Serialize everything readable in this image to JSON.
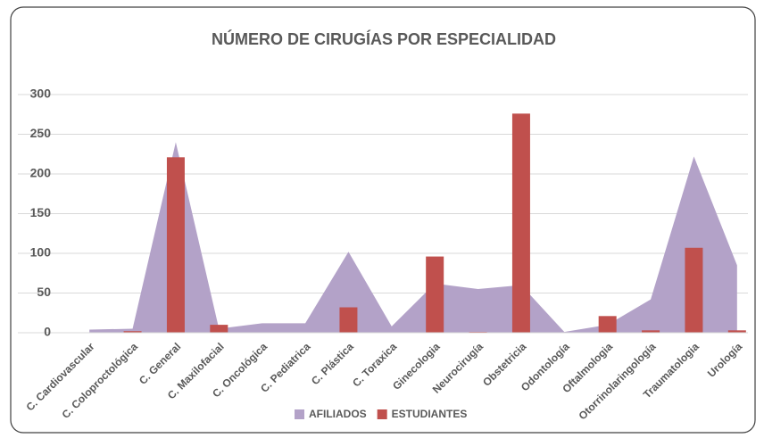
{
  "chart_data": {
    "type": "combo",
    "title": "NÚMERO DE CIRUGÍAS POR ESPECIALIDAD",
    "categories": [
      "C. Cardiovascular",
      "C. Coloproctológica",
      "C. General",
      "C. Maxilofacial",
      "C. Oncológica",
      "C. Pediatrica",
      "C. Plástica",
      "C. Toraxica",
      "Ginecologia",
      "Neurocirugía",
      "Obstetricia",
      "Odontología",
      "Oftalmologia",
      "Otorrinolaringología",
      "Traumatologia",
      "Urología"
    ],
    "series": [
      {
        "name": "AFILIADOS",
        "type": "area",
        "color": "#b3a2c8",
        "values": [
          4,
          5,
          240,
          5,
          12,
          12,
          102,
          8,
          62,
          55,
          60,
          1,
          10,
          42,
          222,
          85
        ]
      },
      {
        "name": "ESTUDIANTES",
        "type": "bar",
        "color": "#c0504d",
        "values": [
          0,
          2,
          221,
          10,
          0,
          0,
          32,
          0,
          96,
          1,
          276,
          0,
          21,
          3,
          107,
          3
        ]
      }
    ],
    "ylim": [
      0,
      300
    ],
    "yticks": [
      0,
      50,
      100,
      150,
      200,
      250,
      300
    ],
    "grid": true,
    "legend": "bottom"
  }
}
